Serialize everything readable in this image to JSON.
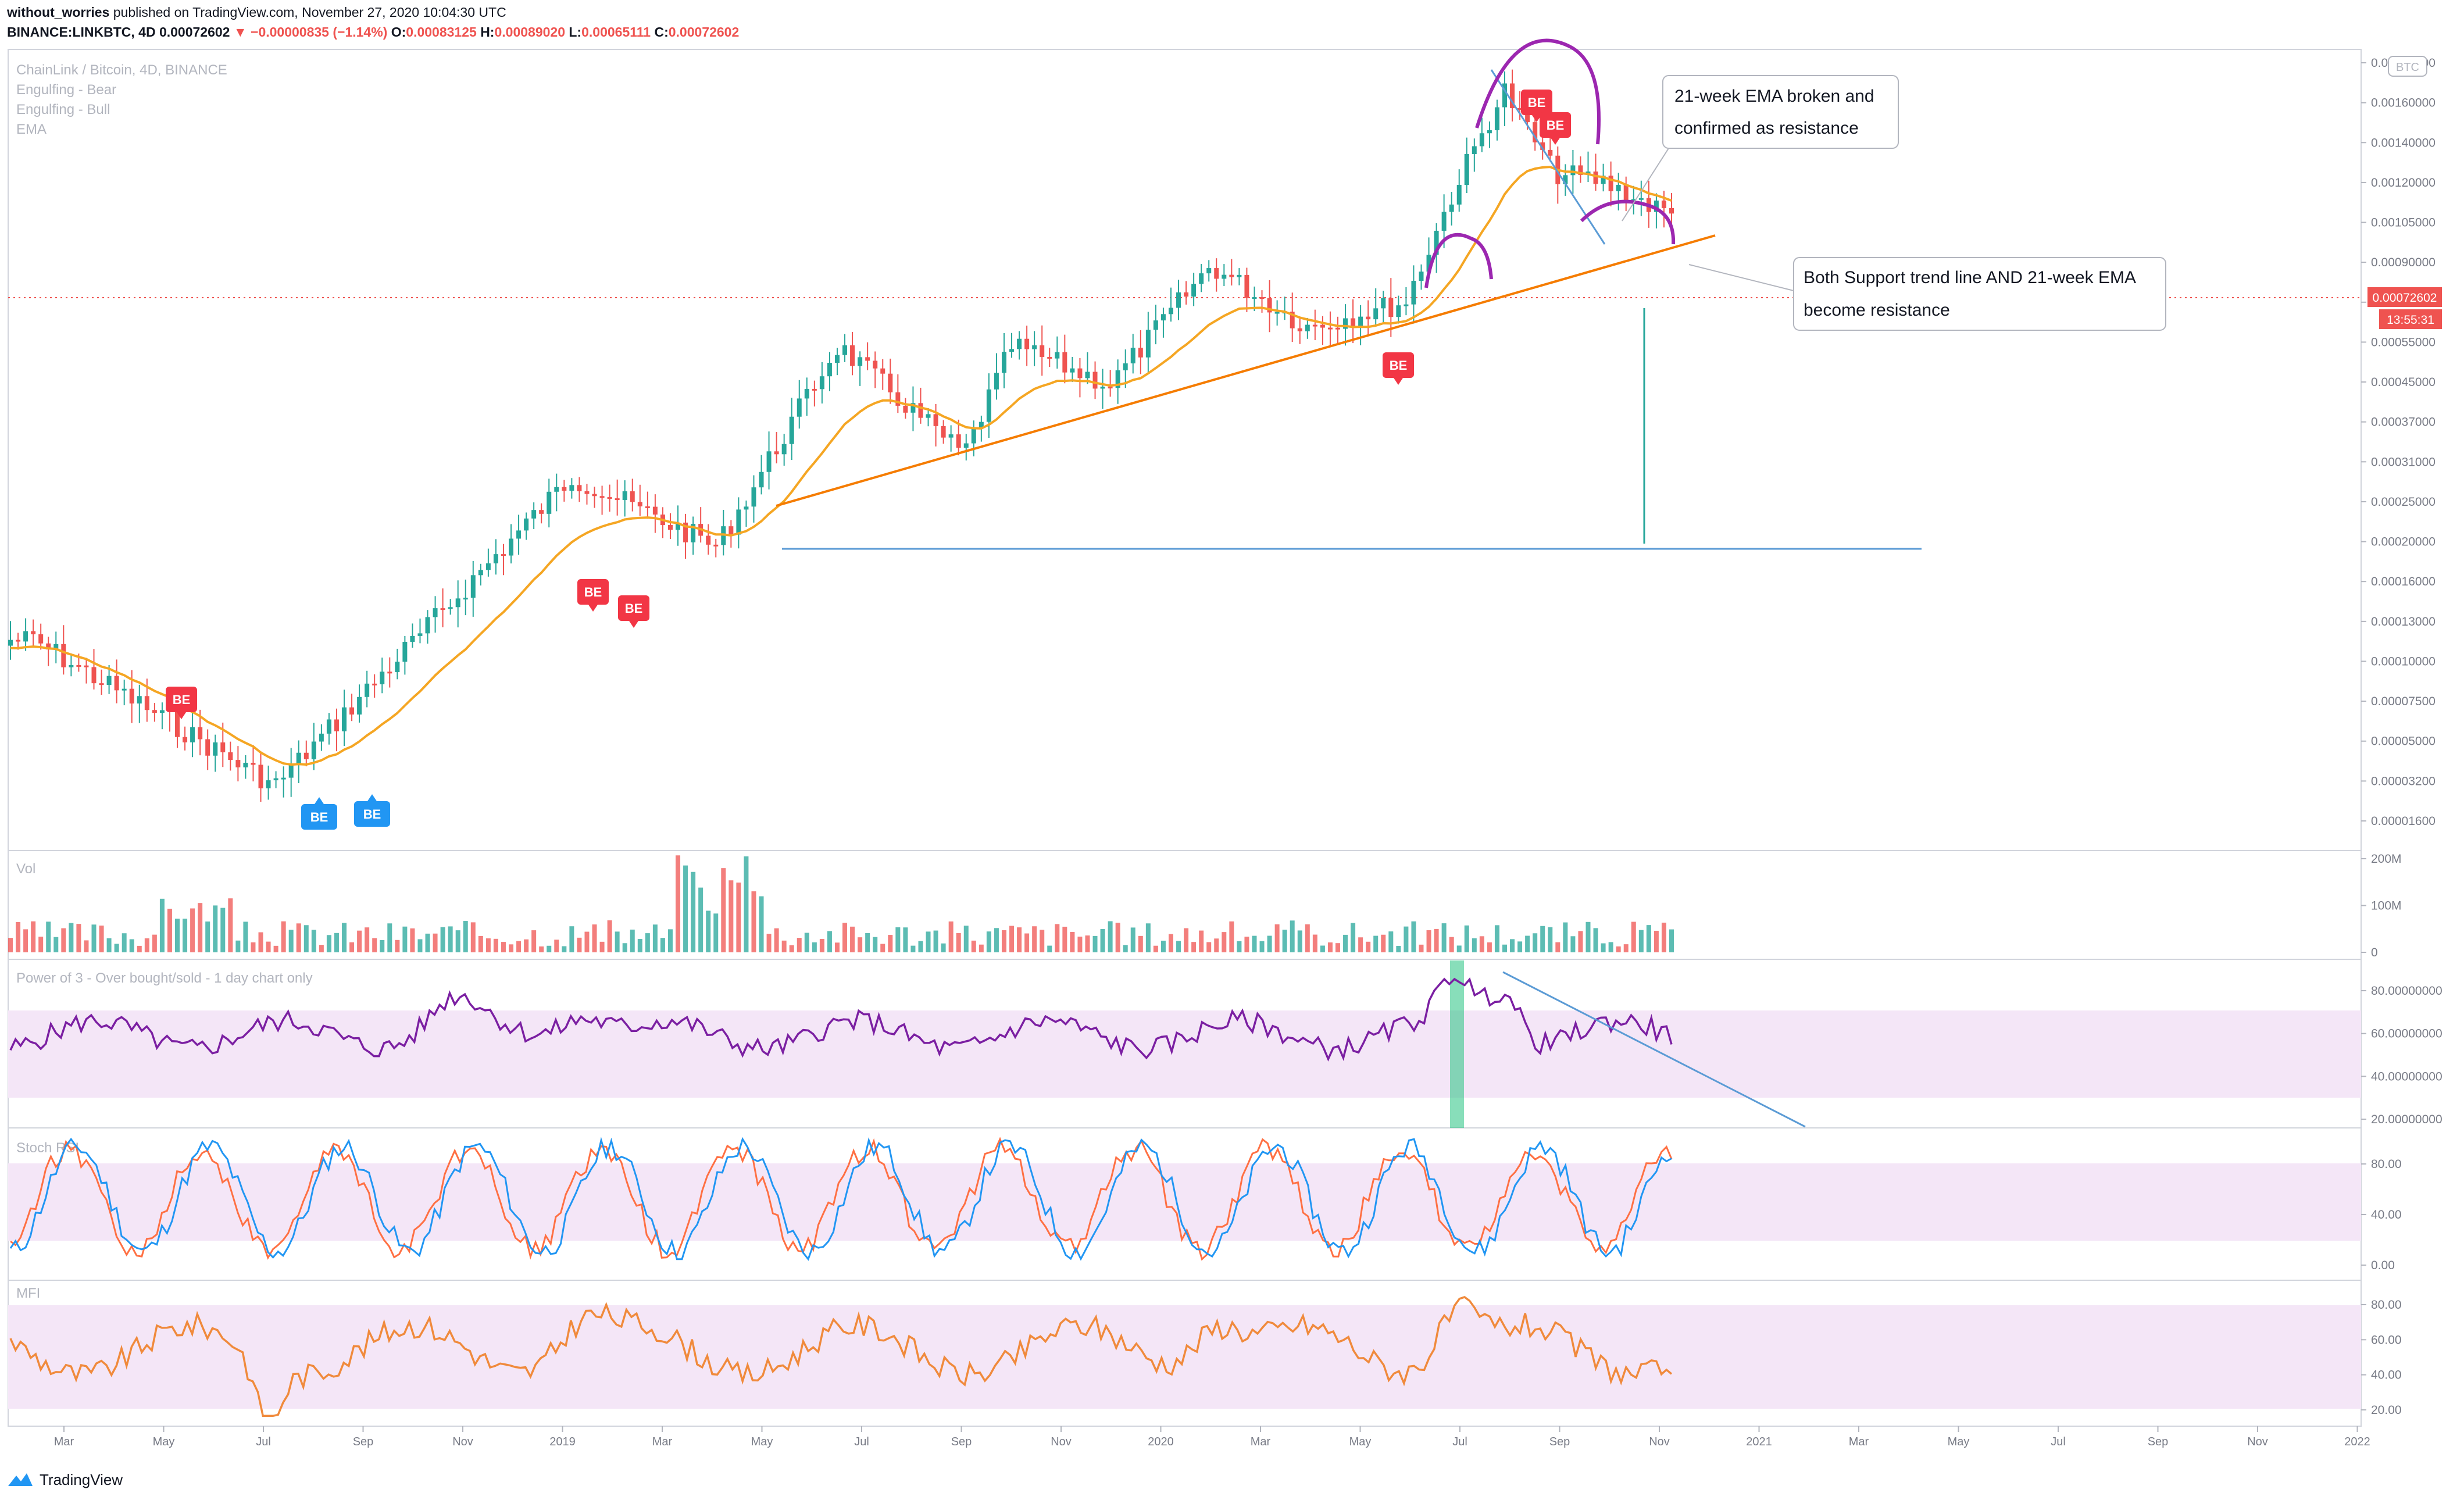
{
  "header": {
    "publisher_prefix": "without_worries",
    "publisher_suffix": " published on TradingView.com, November 27, 2020 10:04:30 UTC",
    "symbol_line": "BINANCE:LINKBTC, 4D",
    "last": "0.00072602",
    "change": "−0.00000835 (−1.14%)",
    "o_key": "O:",
    "o": "0.00083125",
    "h_key": "H:",
    "h": "0.00089020",
    "l_key": "L:",
    "l": "0.00065111",
    "c_key": "C:",
    "c": "0.00072602"
  },
  "legend": {
    "title": "ChainLink / Bitcoin, 4D, BINANCE",
    "items": [
      "Engulfing - Bear",
      "Engulfing - Bull",
      "EMA"
    ]
  },
  "colors": {
    "up": "#26a69a",
    "down": "#ef5350",
    "ema": "#f5a623",
    "trend": "#f57c00",
    "support": "#5b9bd5",
    "arc": "#9c27b0",
    "power": "#7b1fa2",
    "band": "#f4e6f7",
    "stoch_k": "#2196f3",
    "stoch_d": "#ff7043",
    "mfi": "#f08a3c",
    "bear_marker": "#f23645",
    "bull_marker": "#2196f3",
    "highlight": "#26c281"
  },
  "price_axis": {
    "currency_badge": "BTC",
    "ticks": [
      "0.00190000",
      "0.00160000",
      "0.00140000",
      "0.00120000",
      "0.00105000",
      "0.00090000",
      "0.00065000",
      "0.00055000",
      "0.00045000",
      "0.00037000",
      "0.00031000",
      "0.00025000",
      "0.00020000",
      "0.00016000",
      "0.00013000",
      "0.00010000",
      "0.00007500",
      "0.00005000",
      "0.00003200",
      "0.00001600"
    ],
    "last_price_label": "0.00072602",
    "countdown": "13:55:31"
  },
  "time_axis": [
    "Mar",
    "May",
    "Jul",
    "Sep",
    "Nov",
    "2019",
    "Mar",
    "May",
    "Jul",
    "Sep",
    "Nov",
    "2020",
    "Mar",
    "May",
    "Jul",
    "Sep",
    "Nov",
    "2021",
    "Mar",
    "May",
    "Jul",
    "Sep",
    "Nov",
    "2022"
  ],
  "annotations": {
    "ema_note_line1": "21-week EMA broken and",
    "ema_note_line2": "confirmed as resistance",
    "support_note_line1": "Both Support trend line AND 21-week EMA",
    "support_note_line2": "become resistance"
  },
  "markers": {
    "bear_label": "BE",
    "bull_label": "BE"
  },
  "panes": {
    "volume": {
      "title": "Vol",
      "ticks": [
        "200M",
        "100M",
        "0"
      ]
    },
    "power": {
      "title": "Power of 3 - Over bought/sold - 1 day chart only",
      "ticks": [
        "80.00000000",
        "60.00000000",
        "40.00000000",
        "20.00000000"
      ]
    },
    "stoch": {
      "title": "Stoch RSI",
      "ticks": [
        "80.00",
        "40.00",
        "0.00"
      ]
    },
    "mfi": {
      "title": "MFI",
      "ticks": [
        "80.00",
        "60.00",
        "40.00",
        "20.00"
      ]
    }
  },
  "footer": {
    "brand": "TradingView"
  },
  "chart_data": {
    "type": "candlestick",
    "title": "ChainLink / Bitcoin, 4D, BINANCE",
    "date_range": [
      "2018-02",
      "2020-11-27"
    ],
    "price_scale": "log",
    "price_anchors": [
      {
        "date": "2018-02",
        "price": 5e-05
      },
      {
        "date": "2018-07",
        "price": 2e-05
      },
      {
        "date": "2019-01",
        "price": 0.00014
      },
      {
        "date": "2019-04",
        "price": 9e-05
      },
      {
        "date": "2019-06-29",
        "price": 0.00032
      },
      {
        "date": "2019-09",
        "price": 0.00016
      },
      {
        "date": "2019-10",
        "price": 0.00032
      },
      {
        "date": "2019-12",
        "price": 0.00025
      },
      {
        "date": "2020-02",
        "price": 0.00053
      },
      {
        "date": "2020-04",
        "price": 0.00036
      },
      {
        "date": "2020-06",
        "price": 0.00042
      },
      {
        "date": "2020-07",
        "price": 0.00085
      },
      {
        "date": "2020-08-15",
        "price": 0.0016
      },
      {
        "date": "2020-09",
        "price": 0.00095
      },
      {
        "date": "2020-10",
        "price": 0.0009
      },
      {
        "date": "2020-11-27",
        "price": 0.00072602
      }
    ],
    "ohlc_last": {
      "open": 0.00083125,
      "high": 0.0008902,
      "low": 0.00065111,
      "close": 0.00072602
    },
    "indicators": [
      "Volume",
      "EMA (21-week)",
      "Power of 3",
      "Stoch RSI",
      "MFI"
    ],
    "drawn_lines": [
      "rising support trend line (orange)",
      "horizontal support ~0.00023 (blue)",
      "descending trend lines (blue)"
    ]
  }
}
